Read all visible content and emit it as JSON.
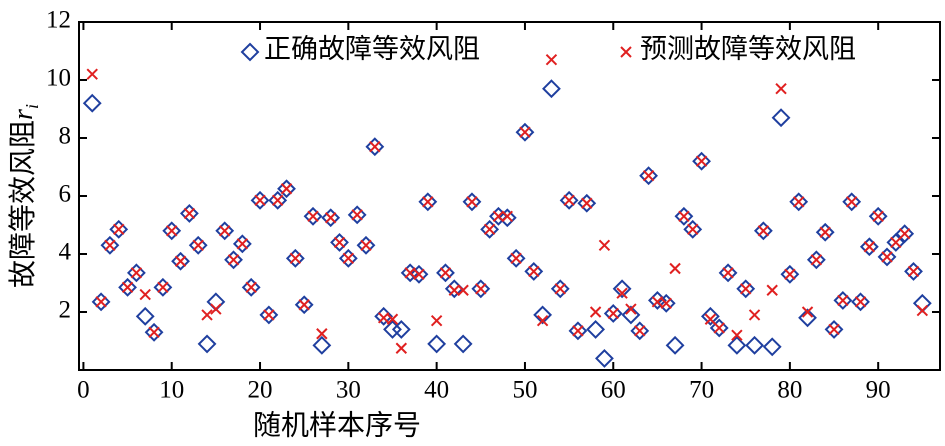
{
  "chart_data": {
    "type": "scatter",
    "xlabel": "随机样本序号",
    "ylabel": "故障等效风阻",
    "ylabel_var": "r",
    "ylabel_sub": "i",
    "x": [
      1,
      2,
      3,
      4,
      5,
      6,
      7,
      8,
      9,
      10,
      11,
      12,
      13,
      14,
      15,
      16,
      17,
      18,
      19,
      20,
      21,
      22,
      23,
      24,
      25,
      26,
      27,
      28,
      29,
      30,
      31,
      32,
      33,
      34,
      35,
      36,
      37,
      38,
      39,
      40,
      41,
      42,
      43,
      44,
      45,
      46,
      47,
      48,
      49,
      50,
      51,
      52,
      53,
      54,
      55,
      56,
      57,
      58,
      59,
      60,
      61,
      62,
      63,
      64,
      65,
      66,
      67,
      68,
      69,
      70,
      71,
      72,
      73,
      74,
      75,
      76,
      77,
      78,
      79,
      80,
      81,
      82,
      83,
      84,
      85,
      86,
      87,
      88,
      89,
      90,
      91,
      92,
      93,
      94,
      95
    ],
    "series": [
      {
        "name": "正确故障等效风阻",
        "color": "#1f3f9f",
        "marker": "diamond",
        "values": [
          9.2,
          2.35,
          4.3,
          4.85,
          2.85,
          3.35,
          1.85,
          1.3,
          2.85,
          4.8,
          3.75,
          5.4,
          4.3,
          0.9,
          2.35,
          4.8,
          3.8,
          4.35,
          2.85,
          5.85,
          1.9,
          5.85,
          6.25,
          3.85,
          2.25,
          5.3,
          0.85,
          5.25,
          4.4,
          3.85,
          5.35,
          4.3,
          7.7,
          1.85,
          1.4,
          1.4,
          3.35,
          3.3,
          5.8,
          0.9,
          3.35,
          2.8,
          0.9,
          5.8,
          2.8,
          4.85,
          5.3,
          5.25,
          3.85,
          8.2,
          3.4,
          1.9,
          9.7,
          2.8,
          5.85,
          1.35,
          5.75,
          1.4,
          0.4,
          1.95,
          2.8,
          1.9,
          1.35,
          6.7,
          2.4,
          2.3,
          0.85,
          5.3,
          4.85,
          7.2,
          1.85,
          1.45,
          3.35,
          0.85,
          2.8,
          0.85,
          4.8,
          0.8,
          8.7,
          3.3,
          5.8,
          1.8,
          3.8,
          4.75,
          1.4,
          2.4,
          5.8,
          2.35,
          4.25,
          5.3,
          3.9,
          4.4,
          4.7,
          3.4,
          2.3
        ]
      },
      {
        "name": "预测故障等效风阻",
        "color": "#e02020",
        "marker": "cross",
        "values": [
          10.2,
          2.35,
          4.3,
          4.85,
          2.85,
          3.35,
          2.6,
          1.3,
          2.85,
          4.8,
          3.75,
          5.4,
          4.3,
          1.9,
          2.1,
          4.8,
          3.8,
          4.35,
          2.85,
          5.85,
          1.9,
          5.85,
          6.25,
          3.85,
          2.25,
          5.3,
          1.25,
          5.25,
          4.4,
          3.85,
          5.35,
          4.3,
          7.7,
          1.8,
          1.75,
          0.75,
          3.35,
          3.3,
          5.8,
          1.7,
          3.35,
          2.75,
          2.75,
          5.8,
          2.8,
          4.85,
          5.3,
          5.3,
          3.85,
          8.2,
          3.4,
          1.7,
          10.7,
          2.8,
          5.85,
          1.35,
          5.75,
          2.0,
          4.3,
          1.95,
          2.65,
          2.1,
          1.35,
          6.7,
          2.35,
          2.3,
          3.5,
          5.3,
          4.85,
          7.2,
          1.75,
          1.45,
          3.35,
          1.2,
          2.8,
          1.9,
          4.8,
          2.75,
          9.7,
          3.3,
          5.8,
          2.0,
          3.8,
          4.75,
          1.4,
          2.4,
          5.8,
          2.35,
          4.25,
          5.3,
          3.9,
          4.4,
          4.7,
          3.4,
          2.05
        ]
      }
    ],
    "xlim": [
      -0.5,
      97
    ],
    "ylim": [
      0,
      12
    ],
    "xticks": [
      0,
      10,
      20,
      30,
      40,
      50,
      60,
      70,
      80,
      90
    ],
    "yticks": [
      2,
      4,
      6,
      8,
      10,
      12
    ]
  }
}
